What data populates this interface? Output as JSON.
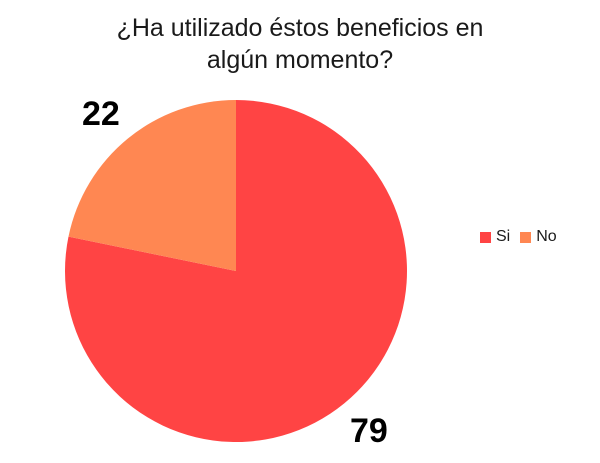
{
  "chart_data": {
    "type": "pie",
    "title_lines": [
      "¿Ha utilizado éstos beneficios en",
      "algún momento?"
    ],
    "categories": [
      "Si",
      "No"
    ],
    "values": [
      79,
      22
    ],
    "colors": [
      "#ff4444",
      "#ff8752"
    ],
    "legend": {
      "position": "right",
      "items": [
        {
          "label": "Si",
          "color": "#ff4444"
        },
        {
          "label": "No",
          "color": "#ff8752"
        }
      ]
    },
    "data_labels": [
      "79",
      "22"
    ]
  }
}
